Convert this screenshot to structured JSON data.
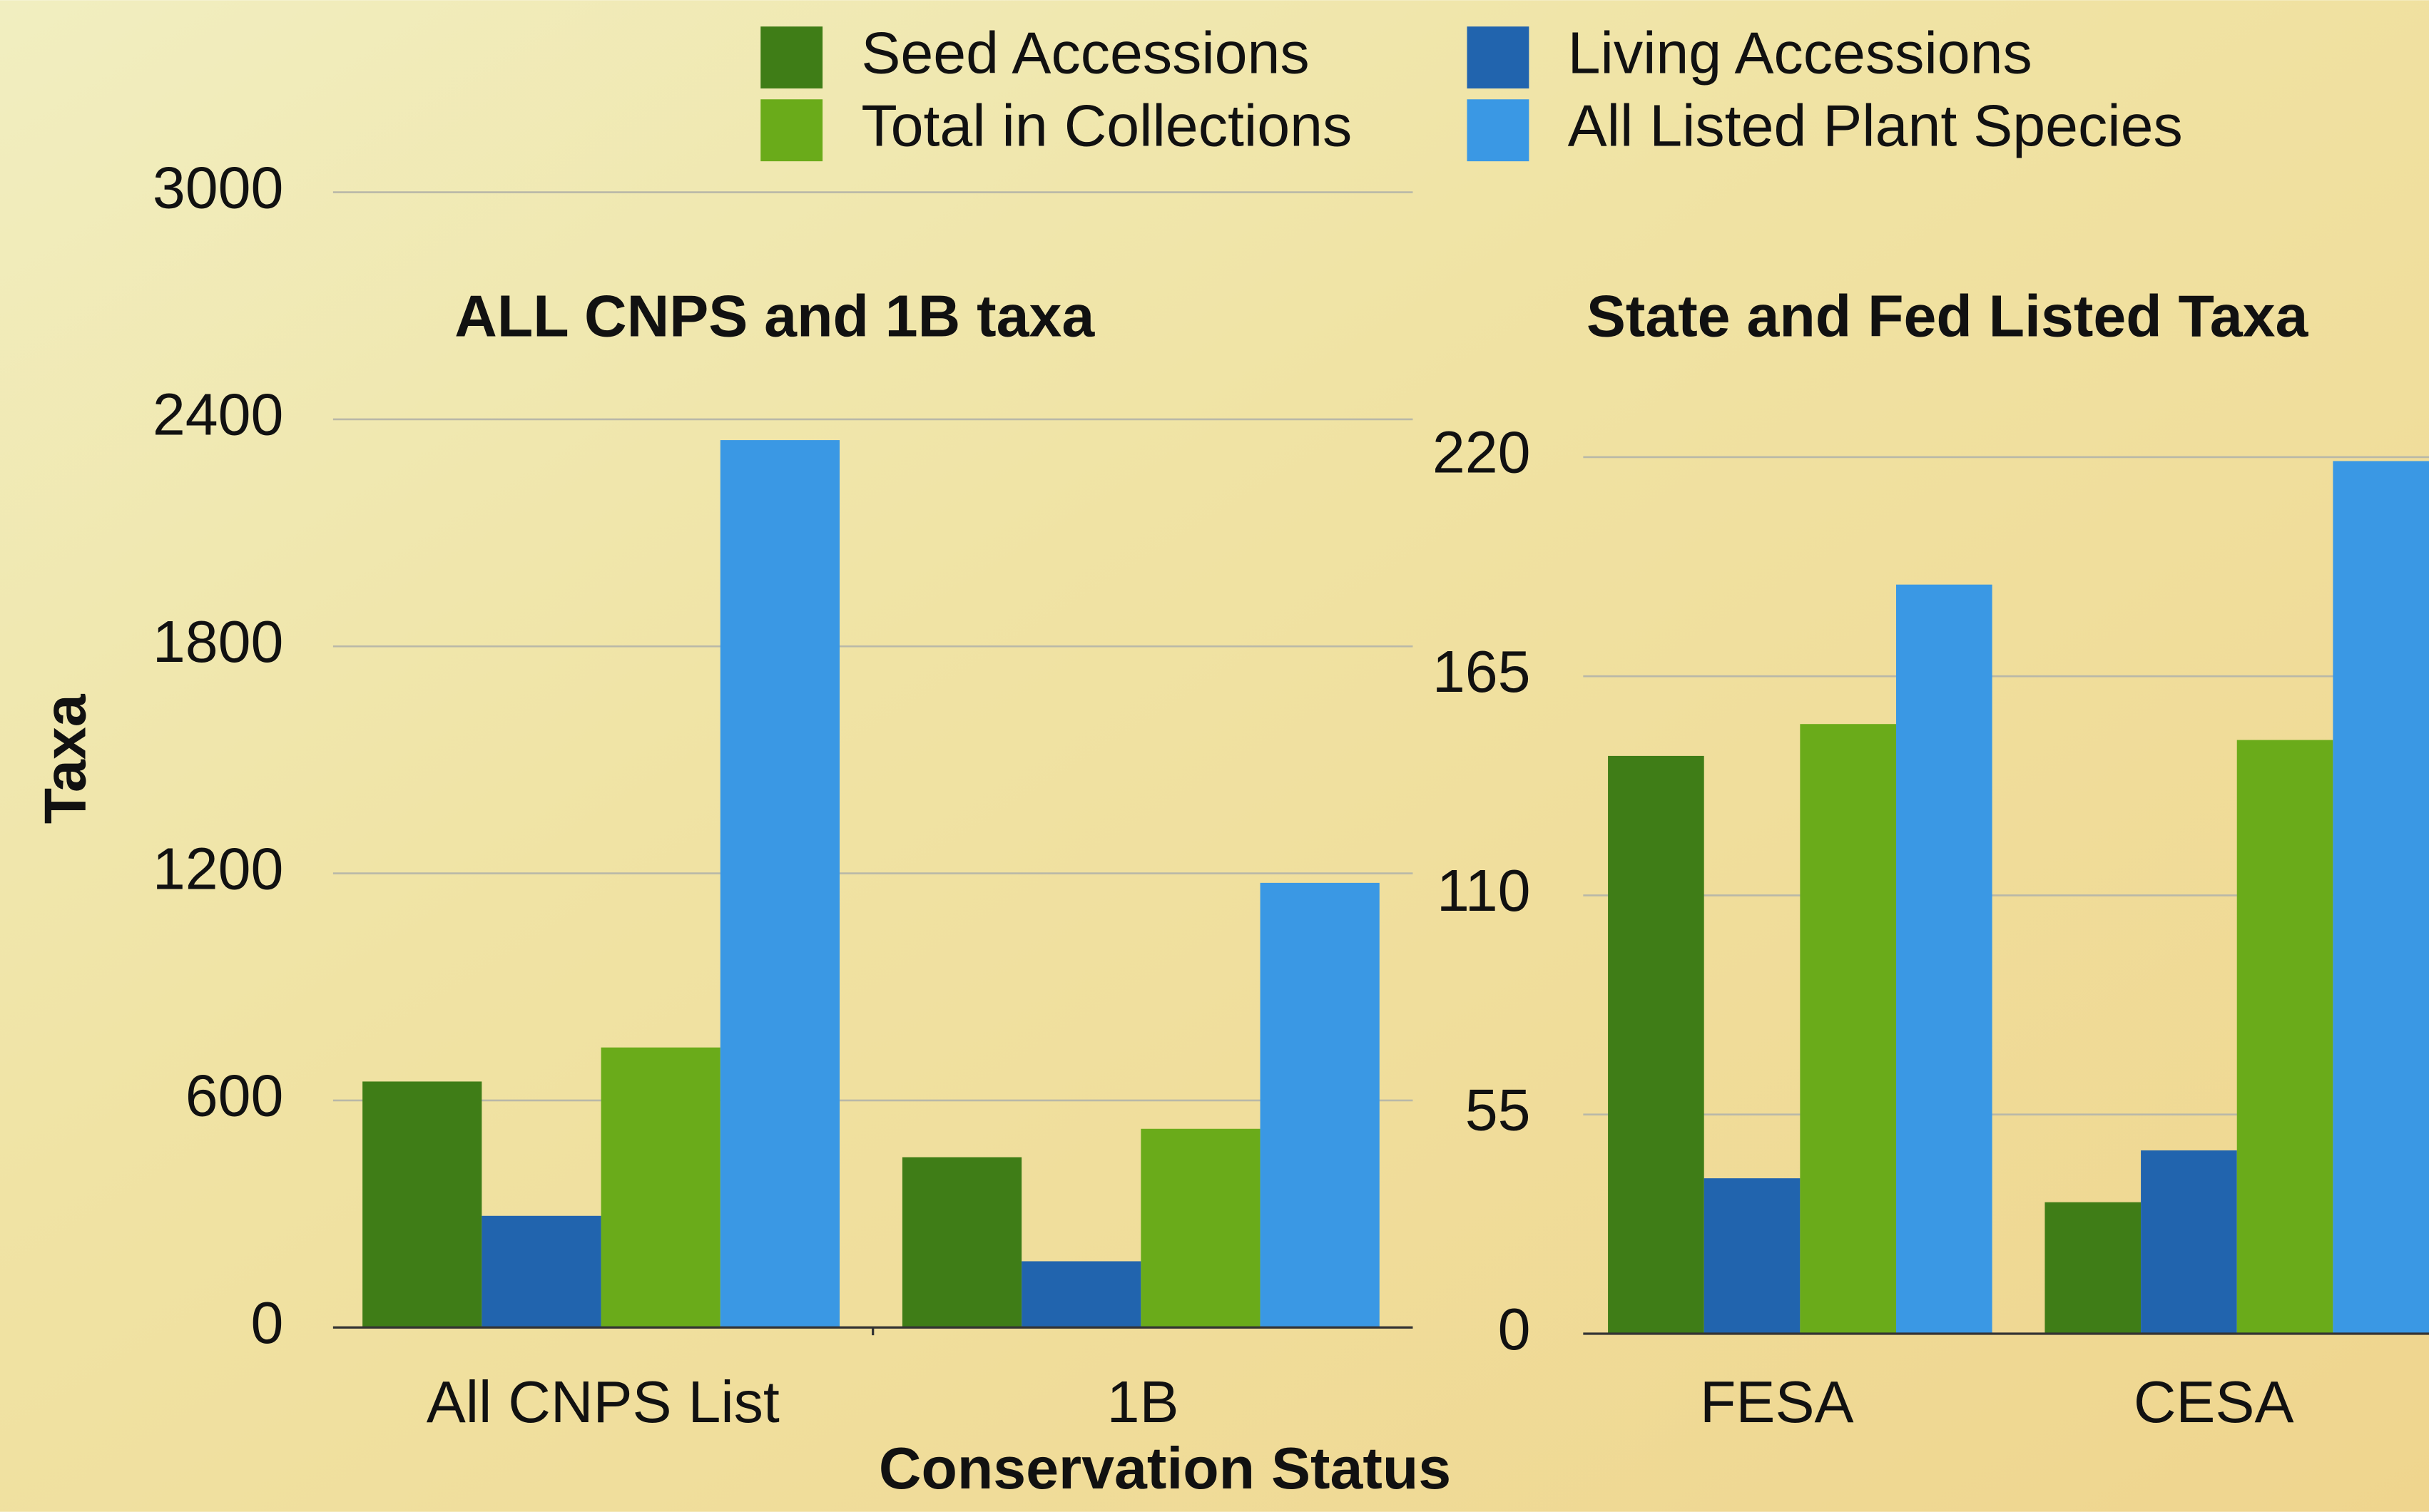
{
  "chart_data": [
    {
      "type": "bar",
      "title": "ALL CNPS and 1B taxa",
      "y_label": "Taxa",
      "x_label": "Conservation Status",
      "categories": [
        "All CNPS List",
        "1B"
      ],
      "series": [
        {
          "name": "Seed Accessions",
          "color": "#3f7d17",
          "values": [
            650,
            450
          ]
        },
        {
          "name": "Living Accessions",
          "color": "#2164ae",
          "values": [
            295,
            175
          ]
        },
        {
          "name": "Total in Collections",
          "color": "#6aab1a",
          "values": [
            740,
            525
          ]
        },
        {
          "name": "All Listed Plant Species",
          "color": "#3a98e4",
          "values": [
            2345,
            1175
          ]
        }
      ],
      "ylim": [
        0,
        3000
      ],
      "yticks": [
        0,
        600,
        1200,
        1800,
        2400,
        3000
      ],
      "grid": true,
      "legend": "top"
    },
    {
      "type": "bar",
      "title": "State and Fed Listed Taxa",
      "categories": [
        "FESA",
        "CESA"
      ],
      "series": [
        {
          "color": "#3f7d17",
          "values": [
            145,
            33
          ]
        },
        {
          "color": "#2164ae",
          "values": [
            39,
            46
          ]
        },
        {
          "color": "#6aab1a",
          "values": [
            153,
            149
          ]
        },
        {
          "color": "#3a98e4",
          "values": [
            188,
            219
          ]
        }
      ],
      "ylim": [
        0,
        220
      ],
      "yticks": [
        0,
        55,
        110,
        165,
        220
      ],
      "grid": true
    }
  ]
}
